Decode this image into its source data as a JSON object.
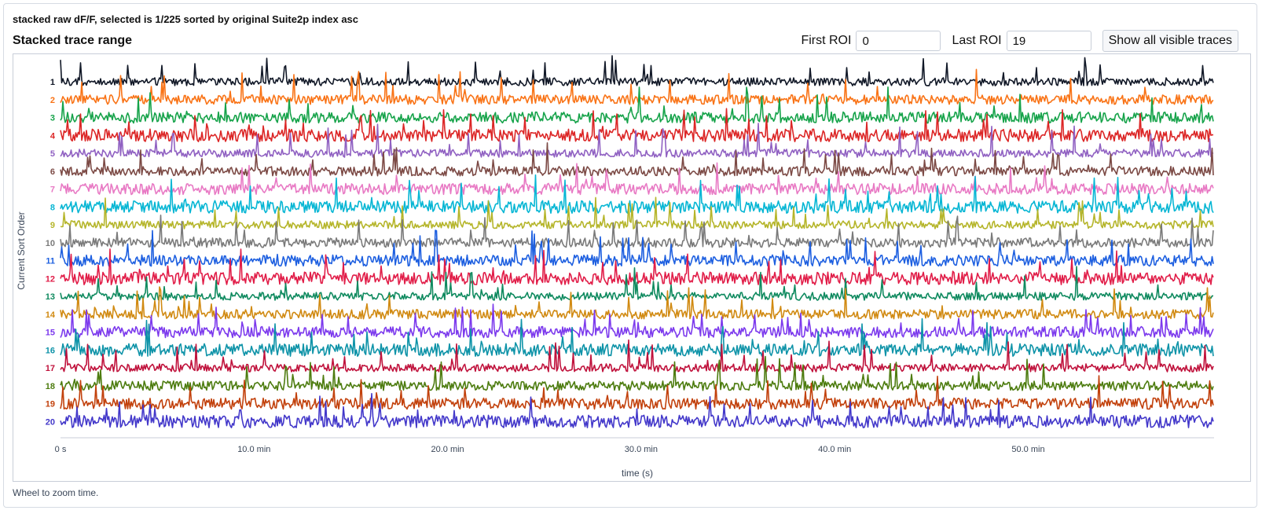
{
  "status_text": "stacked raw dF/F, selected is 1/225 sorted by original Suite2p index asc",
  "section_title": "Stacked trace range",
  "controls": {
    "first_roi_label": "First ROI",
    "first_roi_value": "0",
    "last_roi_label": "Last ROI",
    "last_roi_value": "19",
    "show_all_label": "Show all visible traces"
  },
  "hint_text": "Wheel to zoom time.",
  "chart_data": {
    "type": "line",
    "title": "",
    "xlabel": "time (s)",
    "ylabel": "Current Sort Order",
    "x_unit": "min",
    "xlim": [
      0,
      59.6
    ],
    "x_ticks": [
      {
        "value": 0,
        "label": "0 s"
      },
      {
        "value": 10,
        "label": "10.0 min"
      },
      {
        "value": 20,
        "label": "20.0 min"
      },
      {
        "value": 30,
        "label": "30.0 min"
      },
      {
        "value": 40,
        "label": "40.0 min"
      },
      {
        "value": 50,
        "label": "50.0 min"
      }
    ],
    "grid": false,
    "legend": "none",
    "series": [
      {
        "label": "1",
        "color": "#111827"
      },
      {
        "label": "2",
        "color": "#f97316"
      },
      {
        "label": "3",
        "color": "#16a34a"
      },
      {
        "label": "4",
        "color": "#dc2626"
      },
      {
        "label": "5",
        "color": "#9061c2"
      },
      {
        "label": "6",
        "color": "#7c4a45"
      },
      {
        "label": "7",
        "color": "#e879c4"
      },
      {
        "label": "8",
        "color": "#06b6d4"
      },
      {
        "label": "9",
        "color": "#b5b52a"
      },
      {
        "label": "10",
        "color": "#7a7a7a"
      },
      {
        "label": "11",
        "color": "#1d5fe0"
      },
      {
        "label": "12",
        "color": "#e11d48"
      },
      {
        "label": "13",
        "color": "#0f8a5f"
      },
      {
        "label": "14",
        "color": "#d18a12"
      },
      {
        "label": "15",
        "color": "#7c3aed"
      },
      {
        "label": "16",
        "color": "#0e93a8"
      },
      {
        "label": "17",
        "color": "#c0123c"
      },
      {
        "label": "18",
        "color": "#4d7c0f"
      },
      {
        "label": "19",
        "color": "#c2410c"
      },
      {
        "label": "20",
        "color": "#4338ca"
      }
    ]
  }
}
